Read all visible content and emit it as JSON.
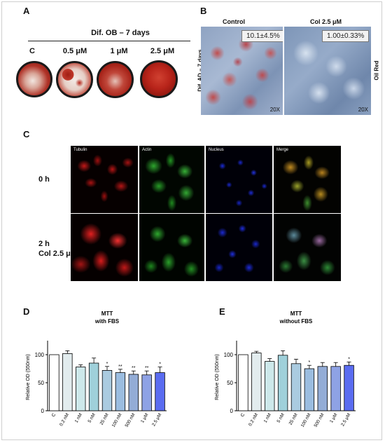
{
  "panelA": {
    "letter": "A",
    "title": "Dif. OB – 7 days",
    "dishes": [
      "C",
      "0.5 μM",
      "1 μM",
      "2.5 μM"
    ]
  },
  "panelB": {
    "letter": "B",
    "side_label": "Dif. AD – 7 days",
    "right_label": "Oil Red",
    "images": [
      {
        "title": "Control",
        "value": "10.1±4.5%",
        "mag": "20X"
      },
      {
        "title": "Col 2.5 μM",
        "value": "1.00±0.33%",
        "mag": "20X"
      }
    ]
  },
  "panelC": {
    "letter": "C",
    "channels": [
      "Tubulin",
      "Actin",
      "Nucleus",
      "Merge"
    ],
    "rows": [
      {
        "label_line1": "0 h",
        "label_line2": ""
      },
      {
        "label_line1": "2 h",
        "label_line2": "Col 2.5 μM"
      }
    ]
  },
  "chart_data": [
    {
      "letter": "D",
      "type": "bar",
      "title": "MTT",
      "subtitle": "with FBS",
      "ylabel": "Relative OD (550nm)",
      "ylim": [
        0,
        120
      ],
      "yticks": [
        0,
        50,
        100
      ],
      "categories": [
        "C",
        "0.2 nM",
        "1 nM",
        "5 nM",
        "25 nM",
        "100 nM",
        "500 nM",
        "1 μM",
        "2.5 μM"
      ],
      "values": [
        100,
        102,
        78,
        85,
        72,
        68,
        65,
        64,
        68
      ],
      "errors": [
        0,
        5,
        4,
        9,
        7,
        6,
        6,
        7,
        10
      ],
      "significance": [
        "",
        "",
        "",
        "",
        "*",
        "**",
        "**",
        "**",
        "*"
      ],
      "colors": [
        "#ffffff",
        "#e2ecee",
        "#cde8ea",
        "#9fd0da",
        "#aacbe0",
        "#9bbde0",
        "#93acd6",
        "#8ea2e5",
        "#5a6cf0"
      ]
    },
    {
      "letter": "E",
      "type": "bar",
      "title": "MTT",
      "subtitle": "without FBS",
      "ylabel": "Relative OD (550nm)",
      "ylim": [
        0,
        120
      ],
      "yticks": [
        0,
        50,
        100
      ],
      "categories": [
        "C",
        "0.2 nM",
        "1 nM",
        "5 nM",
        "25 nM",
        "100 nM",
        "500 nM",
        "1 μM",
        "2.5 μM"
      ],
      "values": [
        100,
        103,
        88,
        99,
        84,
        75,
        79,
        79,
        81
      ],
      "errors": [
        0,
        3,
        5,
        8,
        8,
        6,
        7,
        7,
        6
      ],
      "significance": [
        "",
        "",
        "",
        "",
        "",
        "*",
        "",
        "",
        "*"
      ],
      "colors": [
        "#ffffff",
        "#e2ecee",
        "#cde8ea",
        "#9fd0da",
        "#aacbe0",
        "#9bbde0",
        "#93acd6",
        "#8ea2e5",
        "#5a6cf0"
      ]
    }
  ]
}
